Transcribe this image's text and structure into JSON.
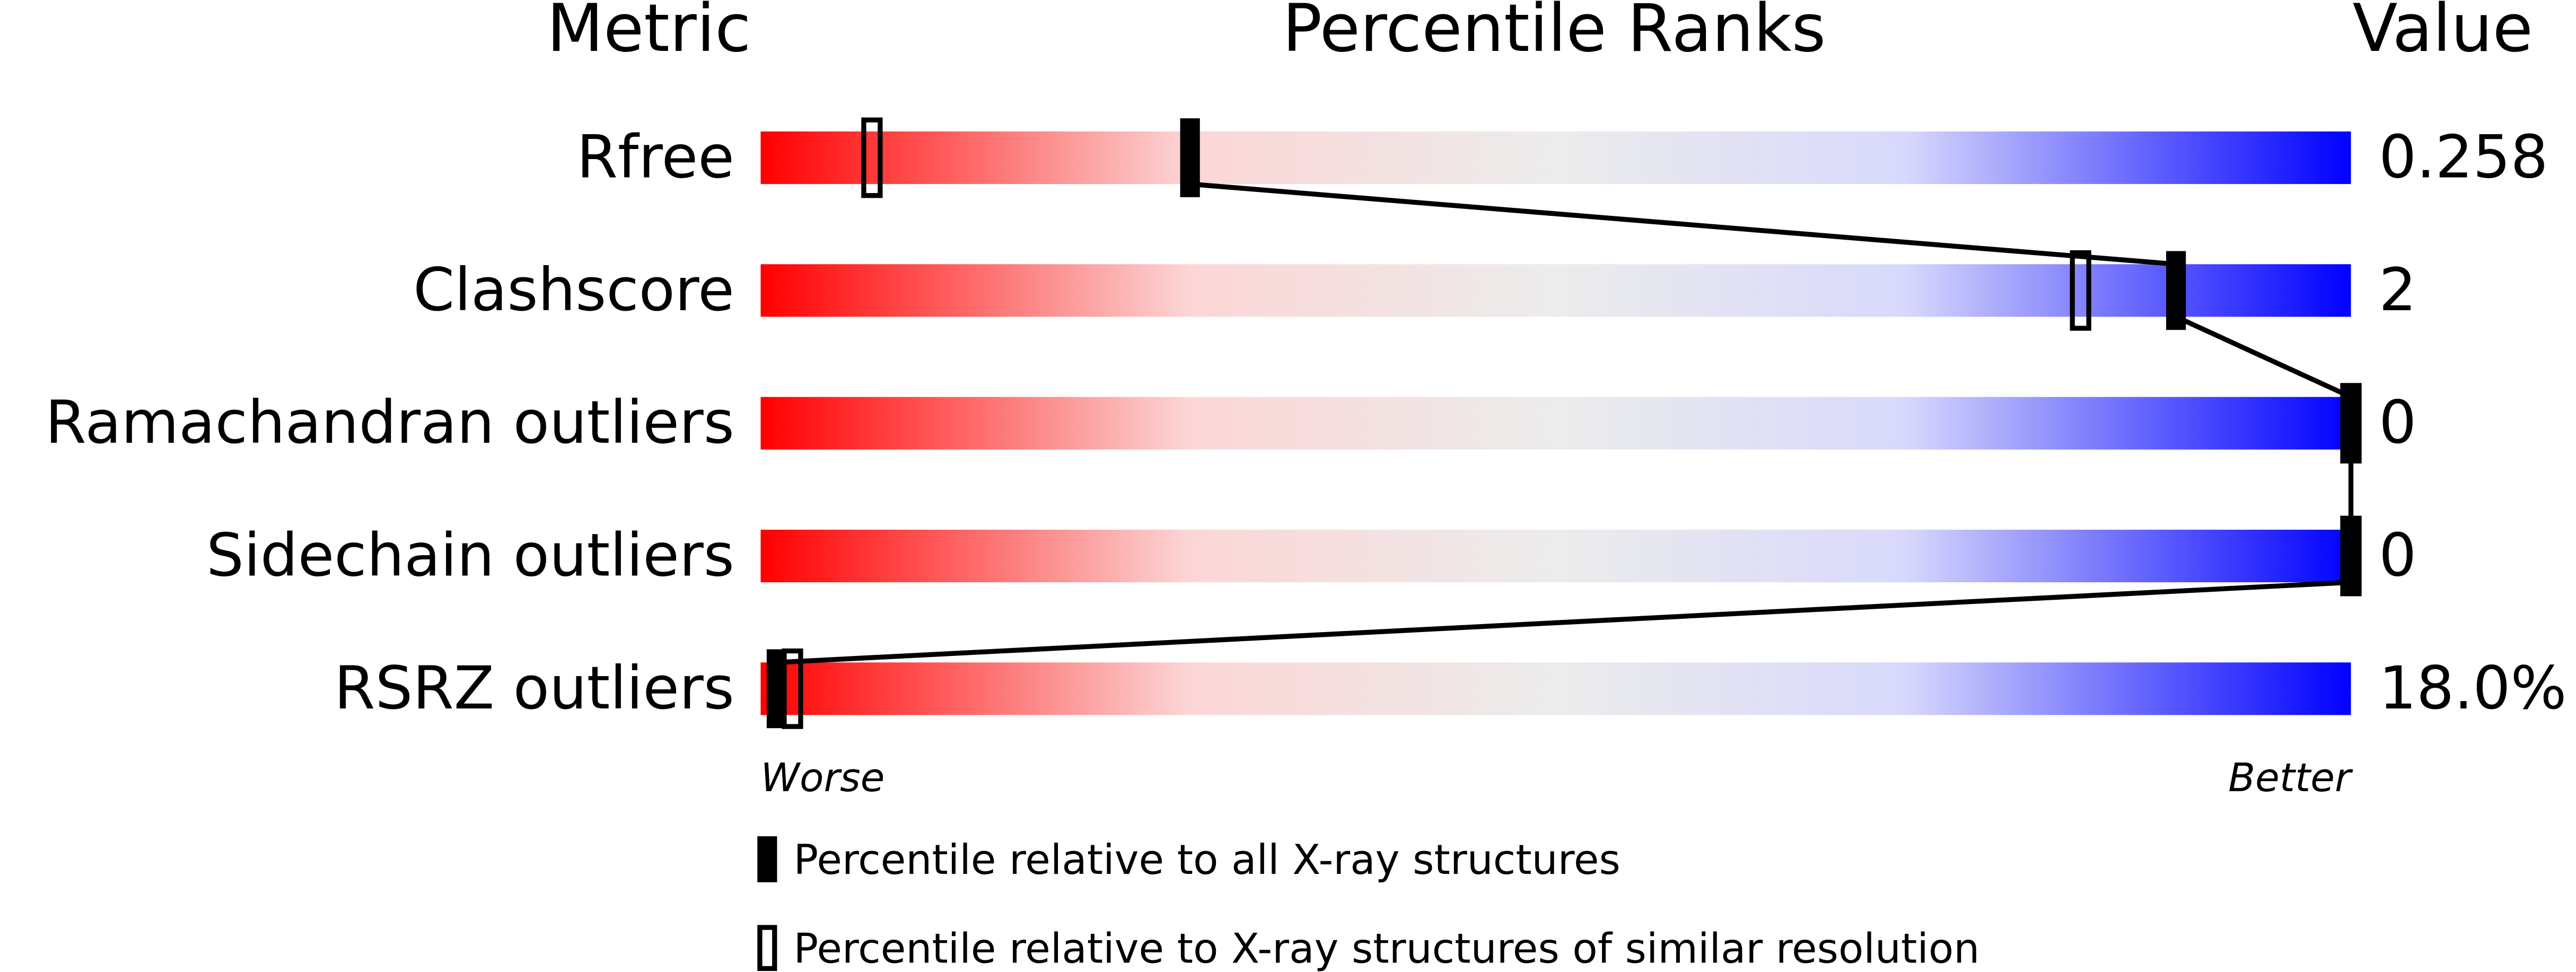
{
  "chart_data": {
    "type": "percentile-slider",
    "headers": {
      "metric": "Metric",
      "ranks": "Percentile Ranks",
      "value": "Value"
    },
    "categories": [
      "Rfree",
      "Clashscore",
      "Ramachandran outliers",
      "Sidechain outliers",
      "RSRZ outliers"
    ],
    "series": [
      {
        "name": "Percentile relative to all X-ray structures",
        "color": "#000000",
        "values": [
          27,
          89,
          100,
          100,
          1
        ]
      },
      {
        "name": "Percentile relative to X-ray structures of similar resolution",
        "color": "#000000",
        "values": [
          7,
          83,
          100,
          100,
          2
        ]
      }
    ],
    "values": [
      0.258,
      2,
      0,
      0,
      18.0
    ],
    "value_labels": [
      "0.258",
      "2",
      "0",
      "0",
      "18.0%"
    ],
    "xlim": [
      0,
      100
    ],
    "worse_label": "Worse",
    "better_label": "Better"
  }
}
